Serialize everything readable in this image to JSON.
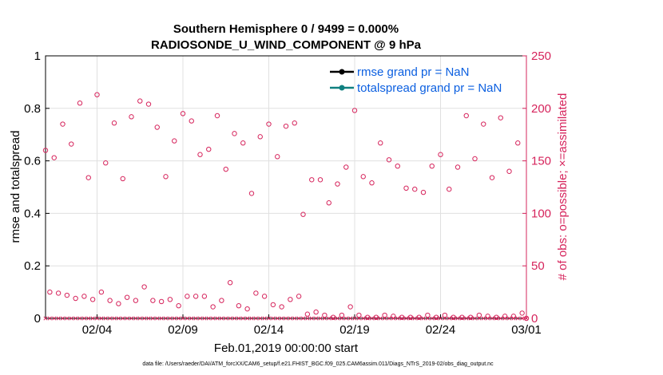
{
  "chart_data": {
    "type": "scatter",
    "title": "Southern Hemisphere 0 / 9499 = 0.000%",
    "subtitle": "RADIOSONDE_U_WIND_COMPONENT @ 9 hPa",
    "xlabel": "Feb.01,2019 00:00:00 start",
    "ylabel_left": "rmse and totalspread",
    "ylabel_right": "# of obs: o=possible; ×=assimilated",
    "xlim": [
      0,
      28
    ],
    "ylim_left": [
      0,
      1
    ],
    "ylim_right": [
      0,
      250
    ],
    "x_ticks": [
      3,
      8,
      13,
      18,
      23,
      28
    ],
    "x_tick_labels": [
      "02/04",
      "02/09",
      "02/14",
      "02/19",
      "02/24",
      "03/01"
    ],
    "y_left_ticks": [
      "0",
      "0.2",
      "0.4",
      "0.6",
      "0.8",
      "1"
    ],
    "y_left_tick_values": [
      0,
      0.2,
      0.4,
      0.6,
      0.8,
      1
    ],
    "y_right_ticks": [
      "0",
      "50",
      "100",
      "150",
      "200",
      "250"
    ],
    "y_right_tick_values": [
      0,
      50,
      100,
      150,
      200,
      250
    ],
    "grid": true,
    "legend_position": "top-right",
    "colors": {
      "rmse": "#000000",
      "totalspread": "#0f8080",
      "obs": "#d6245c",
      "legend_text": "#0b5fe0"
    },
    "series": [
      {
        "name": "rmse grand pr = NaN",
        "values": []
      },
      {
        "name": "totalspread grand pr = NaN",
        "values": []
      },
      {
        "name": "possible obs (o)",
        "x": [
          0.0,
          0.25,
          0.5,
          0.75,
          1.0,
          1.25,
          1.5,
          1.75,
          2.0,
          2.25,
          2.5,
          2.75,
          3.0,
          3.25,
          3.5,
          3.75,
          4.0,
          4.25,
          4.5,
          4.75,
          5.0,
          5.25,
          5.5,
          5.75,
          6.0,
          6.25,
          6.5,
          6.75,
          7.0,
          7.25,
          7.5,
          7.75,
          8.0,
          8.25,
          8.5,
          8.75,
          9.0,
          9.25,
          9.5,
          9.75,
          10.0,
          10.25,
          10.5,
          10.75,
          11.0,
          11.25,
          11.5,
          11.75,
          12.0,
          12.25,
          12.5,
          12.75,
          13.0,
          13.25,
          13.5,
          13.75,
          14.0,
          14.25,
          14.5,
          14.75,
          15.0,
          15.25,
          15.5,
          15.75,
          16.0,
          16.25,
          16.5,
          16.75,
          17.0,
          17.25,
          17.5,
          17.75,
          18.0,
          18.25,
          18.5,
          18.75,
          19.0,
          19.25,
          19.5,
          19.75,
          20.0,
          20.25,
          20.5,
          20.75,
          21.0,
          21.25,
          21.5,
          21.75,
          22.0,
          22.25,
          22.5,
          22.75,
          23.0,
          23.25,
          23.5,
          23.75,
          24.0,
          24.25,
          24.5,
          24.75,
          25.0,
          25.25,
          25.5,
          25.75,
          26.0,
          26.25,
          26.5,
          26.75,
          27.0,
          27.25,
          27.5,
          27.75,
          28.0
        ],
        "values": [
          160,
          25,
          153,
          24,
          185,
          22,
          166,
          19,
          205,
          21,
          134,
          18,
          213,
          25,
          148,
          17,
          186,
          14,
          133,
          20,
          192,
          17,
          207,
          30,
          204,
          17,
          182,
          16,
          135,
          18,
          169,
          12,
          195,
          21,
          188,
          21,
          156,
          21,
          161,
          11,
          193,
          17,
          142,
          34,
          176,
          12,
          167,
          9,
          119,
          24,
          173,
          21,
          185,
          13,
          154,
          11,
          183,
          18,
          186,
          21,
          99,
          4,
          132,
          6,
          132,
          3,
          110,
          1,
          128,
          3,
          144,
          11,
          198,
          3,
          135,
          1,
          129,
          1,
          167,
          3,
          151,
          2,
          145,
          1,
          124,
          1,
          123,
          1,
          120,
          3,
          145,
          1,
          156,
          3,
          123,
          1,
          144,
          1,
          193,
          1,
          152,
          3,
          185,
          2,
          134,
          1,
          191,
          2,
          140,
          2,
          167,
          5,
          0
        ]
      },
      {
        "name": "assimilated obs (×)",
        "x": [
          0,
          28
        ],
        "values": [
          0,
          0
        ]
      }
    ]
  },
  "footer": {
    "data_file": "data file: /Users/raeder/DAI/ATM_forcXX/CAM6_setup/f.e21.FHIST_BGC.f09_025.CAM6assim.011/Diags_NTrS_2019-02/obs_diag_output.nc"
  }
}
